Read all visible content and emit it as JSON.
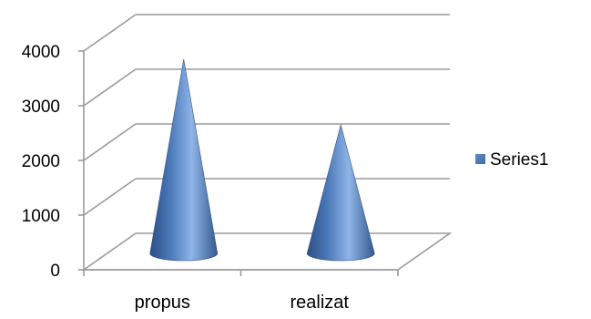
{
  "chart_data": {
    "type": "bar",
    "style": "3d-cone",
    "title": "",
    "xlabel": "",
    "ylabel": "",
    "categories": [
      "propus",
      "realizat"
    ],
    "series": [
      {
        "name": "Series1",
        "values": [
          3550,
          2350
        ],
        "color": "#4F81BD"
      }
    ],
    "yticks": [
      "0",
      "1000",
      "2000",
      "3000",
      "4000"
    ],
    "ylim": [
      0,
      4000
    ],
    "grid": true,
    "legend": "right"
  }
}
